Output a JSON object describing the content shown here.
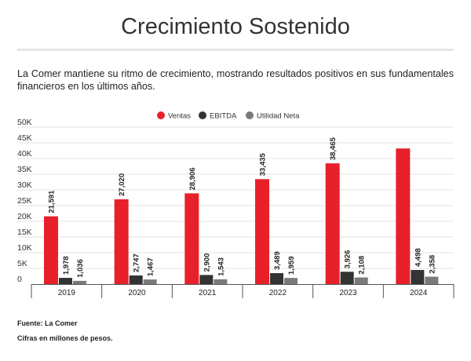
{
  "header": {
    "title": "Crecimiento Sostenido",
    "subtitle": "La Comer mantiene su ritmo de crecimiento, mostrando resultados positivos en sus fundamentales financieros en los últimos años."
  },
  "footer": {
    "source": "Fuente: La Comer",
    "units": "Cifras en millones de pesos."
  },
  "chart_data": {
    "type": "bar",
    "title": "",
    "xlabel": "",
    "ylabel": "",
    "categories": [
      "2019",
      "2020",
      "2021",
      "2022",
      "2023",
      "2024"
    ],
    "ylim": [
      0,
      50000
    ],
    "yticks": [
      0,
      5000,
      10000,
      15000,
      20000,
      25000,
      30000,
      35000,
      40000,
      45000,
      50000
    ],
    "ytick_labels": [
      "0",
      "5K",
      "10K",
      "15K",
      "20K",
      "25K",
      "30K",
      "35K",
      "40K",
      "45K",
      "50K"
    ],
    "grid": true,
    "legend_position": "top-center",
    "series": [
      {
        "name": "Ventas",
        "color": "#e8202a",
        "values": [
          21591,
          27020,
          28906,
          33435,
          38465,
          43200
        ],
        "labels": [
          "21,591",
          "27,020",
          "28,906",
          "33,435",
          "38,465",
          ""
        ]
      },
      {
        "name": "EBITDA",
        "color": "#333333",
        "values": [
          1978,
          2747,
          2900,
          3489,
          3926,
          4498
        ],
        "labels": [
          "1,978",
          "2,747",
          "2,900",
          "3,489",
          "3,926",
          "4,498"
        ]
      },
      {
        "name": "Utilidad Neta",
        "color": "#7a7a7a",
        "values": [
          1036,
          1467,
          1543,
          1959,
          2108,
          2358
        ],
        "labels": [
          "1,036",
          "1,467",
          "1,543",
          "1,959",
          "2,108",
          "2,358"
        ]
      }
    ]
  }
}
